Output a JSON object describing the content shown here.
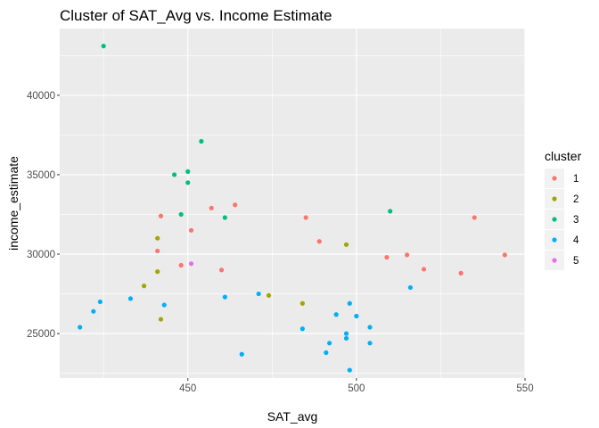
{
  "chart_data": {
    "type": "scatter",
    "title": "Cluster of SAT_Avg vs. Income Estimate",
    "xlabel": "SAT_avg",
    "ylabel": "income_estimate",
    "xlim": [
      412,
      550
    ],
    "ylim": [
      22200,
      44200
    ],
    "x_ticks": [
      450,
      500,
      550
    ],
    "y_ticks": [
      25000,
      30000,
      35000,
      40000
    ],
    "grid": true,
    "background": "#ebebeb",
    "legend": {
      "title": "cluster",
      "position": "right"
    },
    "series": [
      {
        "name": "1",
        "color": "#f8766d",
        "points": [
          [
            442,
            32400
          ],
          [
            457,
            32900
          ],
          [
            464,
            33100
          ],
          [
            485,
            32300
          ],
          [
            441,
            30200
          ],
          [
            451,
            31500
          ],
          [
            448,
            29300
          ],
          [
            460,
            29000
          ],
          [
            489,
            30800
          ],
          [
            509,
            29800
          ],
          [
            515,
            29950
          ],
          [
            520,
            29050
          ],
          [
            531,
            28800
          ],
          [
            535,
            32300
          ],
          [
            544,
            29950
          ]
        ]
      },
      {
        "name": "2",
        "color": "#a3a500",
        "points": [
          [
            441,
            31000
          ],
          [
            441,
            28900
          ],
          [
            437,
            28000
          ],
          [
            442,
            25900
          ],
          [
            474,
            27400
          ],
          [
            484,
            26900
          ],
          [
            497,
            30600
          ]
        ]
      },
      {
        "name": "3",
        "color": "#00bf7d",
        "points": [
          [
            425,
            43100
          ],
          [
            454,
            37100
          ],
          [
            446,
            35000
          ],
          [
            450,
            35200
          ],
          [
            450,
            34500
          ],
          [
            448,
            32500
          ],
          [
            461,
            32300
          ],
          [
            510,
            32700
          ]
        ]
      },
      {
        "name": "4",
        "color": "#00b0f6",
        "points": [
          [
            418,
            25400
          ],
          [
            422,
            26400
          ],
          [
            424,
            27000
          ],
          [
            433,
            27200
          ],
          [
            443,
            26800
          ],
          [
            461,
            27300
          ],
          [
            471,
            27500
          ],
          [
            466,
            23700
          ],
          [
            484,
            25300
          ],
          [
            491,
            23800
          ],
          [
            492,
            24400
          ],
          [
            494,
            26200
          ],
          [
            497,
            24700
          ],
          [
            497,
            25000
          ],
          [
            498,
            26900
          ],
          [
            498,
            22700
          ],
          [
            500,
            26100
          ],
          [
            504,
            25400
          ],
          [
            504,
            24400
          ],
          [
            516,
            27900
          ]
        ]
      },
      {
        "name": "5",
        "color": "#e76bf3",
        "points": [
          [
            451,
            29400
          ]
        ]
      }
    ]
  }
}
